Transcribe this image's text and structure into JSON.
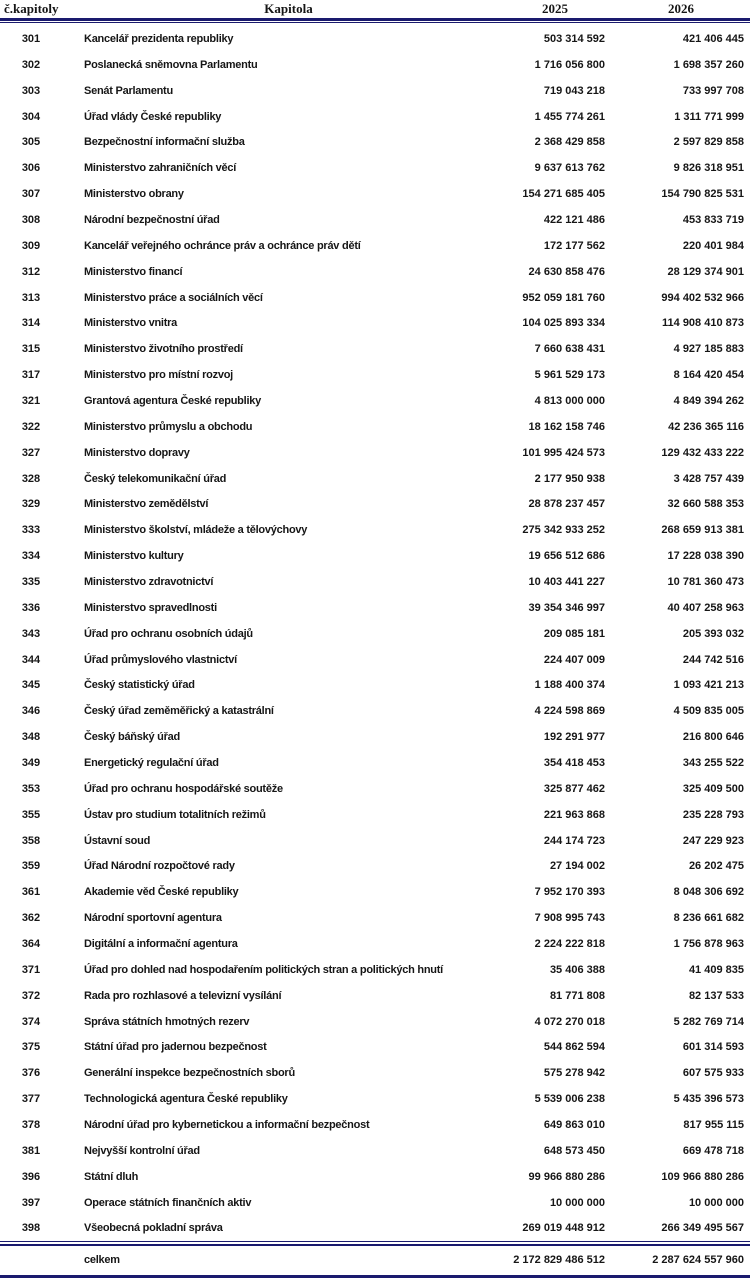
{
  "colors": {
    "rule": "#1a1a6e",
    "text": "#161616"
  },
  "table": {
    "headers": {
      "num": "č.kapitoly",
      "name": "Kapitola",
      "y2025": "2025",
      "y2026": "2026"
    },
    "rows": [
      {
        "num": "301",
        "name": "Kancelář prezidenta republiky",
        "y2025": "503 314 592",
        "y2026": "421 406 445"
      },
      {
        "num": "302",
        "name": "Poslanecká sněmovna Parlamentu",
        "y2025": "1 716 056 800",
        "y2026": "1 698 357 260"
      },
      {
        "num": "303",
        "name": "Senát Parlamentu",
        "y2025": "719 043 218",
        "y2026": "733 997 708"
      },
      {
        "num": "304",
        "name": "Úřad vlády České republiky",
        "y2025": "1 455 774 261",
        "y2026": "1 311 771 999"
      },
      {
        "num": "305",
        "name": "Bezpečnostní informační služba",
        "y2025": "2 368 429 858",
        "y2026": "2 597 829 858"
      },
      {
        "num": "306",
        "name": "Ministerstvo zahraničních věcí",
        "y2025": "9 637 613 762",
        "y2026": "9 826 318 951"
      },
      {
        "num": "307",
        "name": "Ministerstvo obrany",
        "y2025": "154 271 685 405",
        "y2026": "154 790 825 531"
      },
      {
        "num": "308",
        "name": "Národní bezpečnostní úřad",
        "y2025": "422 121 486",
        "y2026": "453 833 719"
      },
      {
        "num": "309",
        "name": "Kancelář veřejného ochránce práv a ochránce práv dětí",
        "y2025": "172 177 562",
        "y2026": "220 401 984"
      },
      {
        "num": "312",
        "name": "Ministerstvo financí",
        "y2025": "24 630 858 476",
        "y2026": "28 129 374 901"
      },
      {
        "num": "313",
        "name": "Ministerstvo práce a sociálních věcí",
        "y2025": "952 059 181 760",
        "y2026": "994 402 532 966"
      },
      {
        "num": "314",
        "name": "Ministerstvo vnitra",
        "y2025": "104 025 893 334",
        "y2026": "114 908 410 873"
      },
      {
        "num": "315",
        "name": "Ministerstvo životního prostředí",
        "y2025": "7 660 638 431",
        "y2026": "4 927 185 883"
      },
      {
        "num": "317",
        "name": "Ministerstvo pro místní rozvoj",
        "y2025": "5 961 529 173",
        "y2026": "8 164 420 454"
      },
      {
        "num": "321",
        "name": "Grantová agentura České republiky",
        "y2025": "4 813 000 000",
        "y2026": "4 849 394 262"
      },
      {
        "num": "322",
        "name": "Ministerstvo průmyslu a obchodu",
        "y2025": "18 162 158 746",
        "y2026": "42 236 365 116"
      },
      {
        "num": "327",
        "name": "Ministerstvo dopravy",
        "y2025": "101 995 424 573",
        "y2026": "129 432 433 222"
      },
      {
        "num": "328",
        "name": "Český telekomunikační úřad",
        "y2025": "2 177 950 938",
        "y2026": "3 428 757 439"
      },
      {
        "num": "329",
        "name": "Ministerstvo zemědělství",
        "y2025": "28 878 237 457",
        "y2026": "32 660 588 353"
      },
      {
        "num": "333",
        "name": "Ministerstvo školství, mládeže a tělovýchovy",
        "y2025": "275 342 933 252",
        "y2026": "268 659 913 381"
      },
      {
        "num": "334",
        "name": "Ministerstvo kultury",
        "y2025": "19 656 512 686",
        "y2026": "17 228 038 390"
      },
      {
        "num": "335",
        "name": "Ministerstvo zdravotnictví",
        "y2025": "10 403 441 227",
        "y2026": "10 781 360 473"
      },
      {
        "num": "336",
        "name": "Ministerstvo spravedlnosti",
        "y2025": "39 354 346 997",
        "y2026": "40 407 258 963"
      },
      {
        "num": "343",
        "name": "Úřad pro ochranu osobních údajů",
        "y2025": "209 085 181",
        "y2026": "205 393 032"
      },
      {
        "num": "344",
        "name": "Úřad průmyslového vlastnictví",
        "y2025": "224 407 009",
        "y2026": "244 742 516"
      },
      {
        "num": "345",
        "name": "Český statistický úřad",
        "y2025": "1 188 400 374",
        "y2026": "1 093 421 213"
      },
      {
        "num": "346",
        "name": "Český úřad zeměměřický a katastrální",
        "y2025": "4 224 598 869",
        "y2026": "4 509 835 005"
      },
      {
        "num": "348",
        "name": "Český báňský úřad",
        "y2025": "192 291 977",
        "y2026": "216 800 646"
      },
      {
        "num": "349",
        "name": "Energetický regulační úřad",
        "y2025": "354 418 453",
        "y2026": "343 255 522"
      },
      {
        "num": "353",
        "name": "Úřad pro ochranu hospodářské soutěže",
        "y2025": "325 877 462",
        "y2026": "325 409 500"
      },
      {
        "num": "355",
        "name": "Ústav pro studium totalitních režimů",
        "y2025": "221 963 868",
        "y2026": "235 228 793"
      },
      {
        "num": "358",
        "name": "Ústavní soud",
        "y2025": "244 174 723",
        "y2026": "247 229 923"
      },
      {
        "num": "359",
        "name": "Úřad Národní rozpočtové rady",
        "y2025": "27 194 002",
        "y2026": "26 202 475"
      },
      {
        "num": "361",
        "name": "Akademie věd České republiky",
        "y2025": "7 952 170 393",
        "y2026": "8 048 306 692"
      },
      {
        "num": "362",
        "name": "Národní sportovní agentura",
        "y2025": "7 908 995 743",
        "y2026": "8 236 661 682"
      },
      {
        "num": "364",
        "name": "Digitální a informační agentura",
        "y2025": "2 224 222 818",
        "y2026": "1 756 878 963"
      },
      {
        "num": "371",
        "name": "Úřad pro dohled nad hospodařením politických stran a politických hnutí",
        "y2025": "35 406 388",
        "y2026": "41 409 835"
      },
      {
        "num": "372",
        "name": "Rada pro rozhlasové a televizní vysílání",
        "y2025": "81 771 808",
        "y2026": "82 137 533"
      },
      {
        "num": "374",
        "name": "Správa státních hmotných rezerv",
        "y2025": "4 072 270 018",
        "y2026": "5 282 769 714"
      },
      {
        "num": "375",
        "name": "Státní úřad pro jadernou bezpečnost",
        "y2025": "544 862 594",
        "y2026": "601 314 593"
      },
      {
        "num": "376",
        "name": "Generální inspekce bezpečnostních sborů",
        "y2025": "575 278 942",
        "y2026": "607 575 933"
      },
      {
        "num": "377",
        "name": "Technologická agentura České republiky",
        "y2025": "5 539 006 238",
        "y2026": "5 435 396 573"
      },
      {
        "num": "378",
        "name": "Národní úřad pro kybernetickou a informační bezpečnost",
        "y2025": "649 863 010",
        "y2026": "817 955 115"
      },
      {
        "num": "381",
        "name": "Nejvyšší kontrolní úřad",
        "y2025": "648 573 450",
        "y2026": "669 478 718"
      },
      {
        "num": "396",
        "name": "Státní dluh",
        "y2025": "99 966 880 286",
        "y2026": "109 966 880 286"
      },
      {
        "num": "397",
        "name": "Operace státních finančních aktiv",
        "y2025": "10 000 000",
        "y2026": "10 000 000"
      },
      {
        "num": "398",
        "name": "Všeobecná pokladní správa",
        "y2025": "269 019 448 912",
        "y2026": "266 349 495 567"
      }
    ],
    "total": {
      "label": "celkem",
      "y2025": "2 172 829 486 512",
      "y2026": "2 287 624 557 960"
    }
  }
}
